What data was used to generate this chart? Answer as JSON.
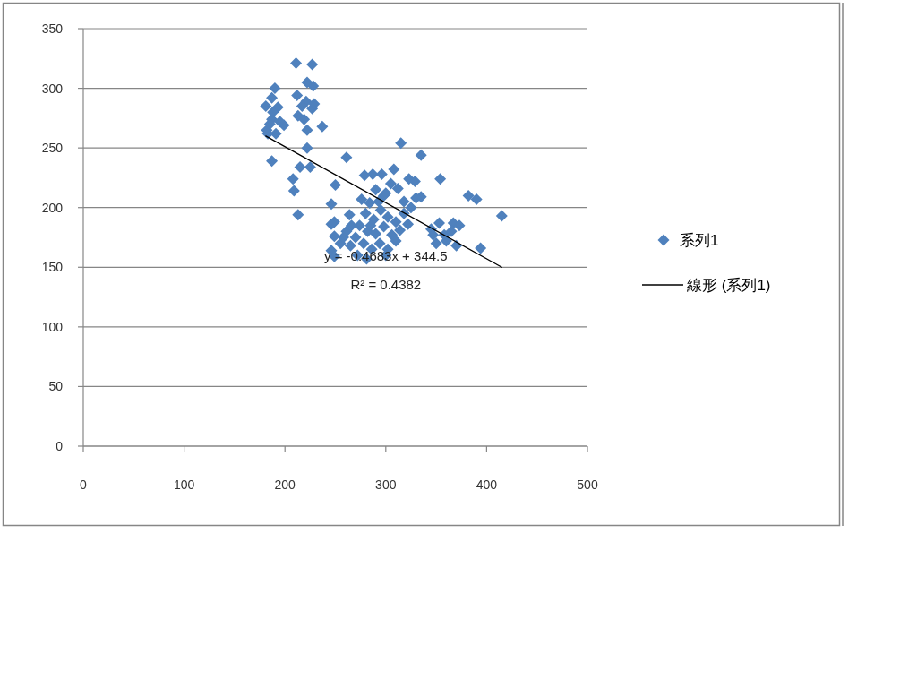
{
  "chart_data": {
    "type": "scatter",
    "xlim": [
      0,
      500
    ],
    "ylim": [
      0,
      350
    ],
    "xticks": [
      0,
      100,
      200,
      300,
      400,
      500
    ],
    "yticks": [
      0,
      50,
      100,
      150,
      200,
      250,
      300,
      350
    ],
    "grid": "y",
    "legend": "right",
    "annotations": [
      "y = -0.4683x + 344.5",
      "R² = 0.4382"
    ],
    "series": [
      {
        "name": "系列1",
        "color": "#4f81bd",
        "marker": "diamond",
        "x": [
          211,
          227,
          222,
          228,
          190,
          212,
          187,
          221,
          181,
          193,
          227,
          213,
          219,
          187,
          199,
          237,
          182,
          222,
          191,
          183,
          222,
          187,
          215,
          225,
          208,
          209,
          213,
          188,
          195,
          217,
          229,
          185,
          250,
          246,
          249,
          261,
          246,
          249,
          261,
          246,
          249,
          264,
          255,
          266,
          258,
          279,
          287,
          296,
          308,
          323,
          329,
          335,
          276,
          284,
          290,
          298,
          305,
          312,
          318,
          325,
          280,
          288,
          295,
          302,
          310,
          318,
          274,
          282,
          290,
          298,
          306,
          314,
          322,
          270,
          278,
          286,
          294,
          302,
          310,
          293,
          300,
          285,
          265,
          272,
          281,
          300,
          330,
          315,
          335,
          354,
          382,
          390,
          415,
          394,
          353,
          367,
          373,
          347,
          358,
          365,
          350,
          360,
          370,
          345
        ],
        "values": [
          321,
          320,
          305,
          302,
          300,
          294,
          292,
          289,
          285,
          284,
          283,
          277,
          274,
          274,
          269,
          268,
          265,
          265,
          262,
          262,
          250,
          239,
          234,
          234,
          224,
          214,
          194,
          280,
          272,
          285,
          287,
          270,
          219,
          203,
          188,
          242,
          186,
          176,
          180,
          164,
          159,
          194,
          170,
          185,
          175,
          227,
          228,
          228,
          232,
          224,
          222,
          209,
          207,
          204,
          215,
          210,
          220,
          216,
          205,
          200,
          195,
          190,
          198,
          192,
          188,
          195,
          185,
          180,
          178,
          184,
          177,
          181,
          186,
          175,
          170,
          165,
          170,
          165,
          172,
          205,
          212,
          185,
          168,
          160,
          157,
          160,
          208,
          254,
          244,
          224,
          210,
          207,
          193,
          166,
          187,
          187,
          185,
          177,
          177,
          180,
          170,
          172,
          168,
          182
        ]
      },
      {
        "name": "線形 (系列1)",
        "type": "line",
        "color": "#000000",
        "line_style": "solid",
        "x": [
          181,
          415
        ],
        "values": [
          260,
          150
        ]
      }
    ]
  }
}
